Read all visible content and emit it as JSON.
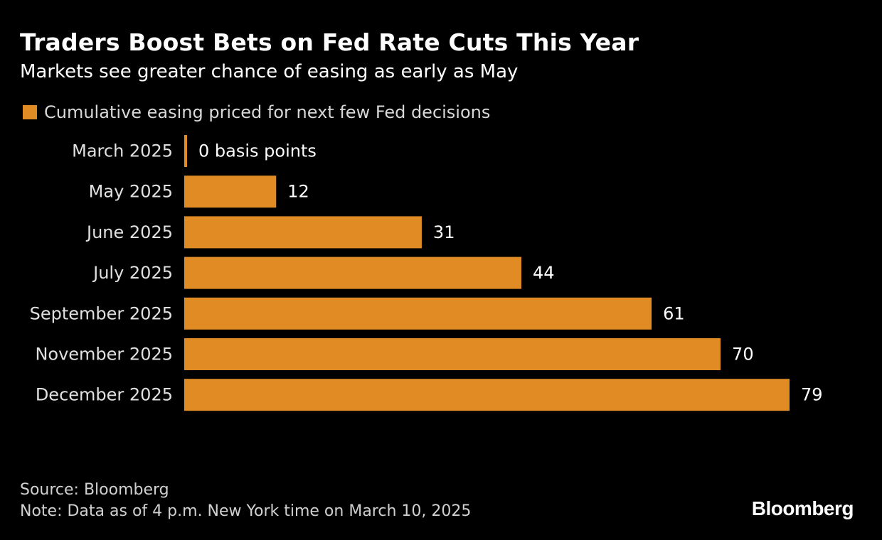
{
  "chart_data": {
    "type": "bar",
    "orientation": "horizontal",
    "title": "Traders Boost Bets on Fed Rate Cuts This Year",
    "subtitle": "Markets see greater chance of easing as early as May",
    "legend": "Cumulative easing priced for next few Fed decisions",
    "categories": [
      "March 2025",
      "May 2025",
      "June 2025",
      "July 2025",
      "September 2025",
      "November 2025",
      "December 2025"
    ],
    "values": [
      0,
      12,
      31,
      44,
      61,
      70,
      79
    ],
    "value_labels": [
      "0 basis points",
      "12",
      "31",
      "44",
      "61",
      "70",
      "79"
    ],
    "unit": "basis points",
    "xlim": [
      0,
      80
    ],
    "grid": false,
    "bar_color": "#e08b24",
    "source": "Source: Bloomberg",
    "note": "Note: Data as of 4 p.m. New York time on March 10, 2025"
  },
  "brand": "Bloomberg"
}
